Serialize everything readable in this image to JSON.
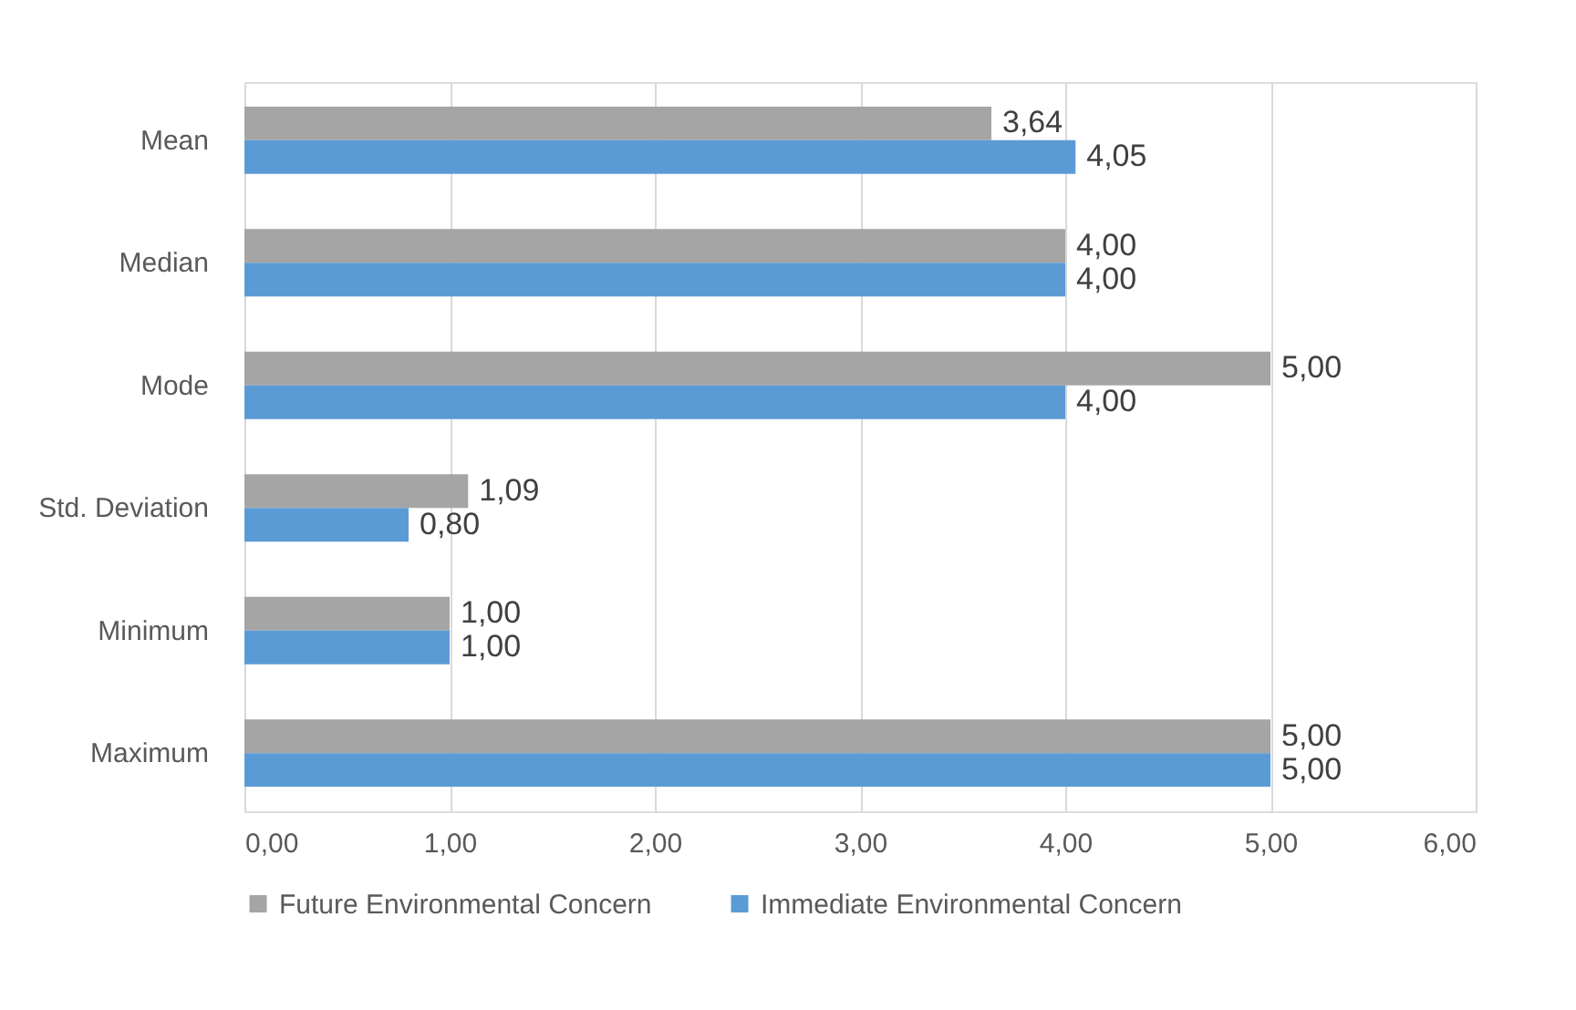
{
  "chart_data": {
    "type": "bar",
    "orientation": "horizontal",
    "categories": [
      "Mean",
      "Median",
      "Mode",
      "Std. Deviation",
      "Minimum",
      "Maximum"
    ],
    "series": [
      {
        "name": "Future Environmental Concern",
        "color": "#a5a5a5",
        "values": [
          3.64,
          4.0,
          5.0,
          1.09,
          1.0,
          5.0
        ],
        "value_labels": [
          "3,64",
          "4,00",
          "5,00",
          "1,09",
          "1,00",
          "5,00"
        ]
      },
      {
        "name": "Immediate Environmental Concern",
        "color": "#5b9bd5",
        "values": [
          4.05,
          4.0,
          4.0,
          0.8,
          1.0,
          5.0
        ],
        "value_labels": [
          "4,05",
          "4,00",
          "4,00",
          "0,80",
          "1,00",
          "5,00"
        ]
      }
    ],
    "xlim": [
      0,
      6
    ],
    "xticks": [
      {
        "value": 0,
        "label": "0,00"
      },
      {
        "value": 1,
        "label": "1,00"
      },
      {
        "value": 2,
        "label": "2,00"
      },
      {
        "value": 3,
        "label": "3,00"
      },
      {
        "value": 4,
        "label": "4,00"
      },
      {
        "value": 5,
        "label": "5,00"
      },
      {
        "value": 6,
        "label": "6,00"
      }
    ],
    "grid": "x",
    "legend": "bottom"
  }
}
